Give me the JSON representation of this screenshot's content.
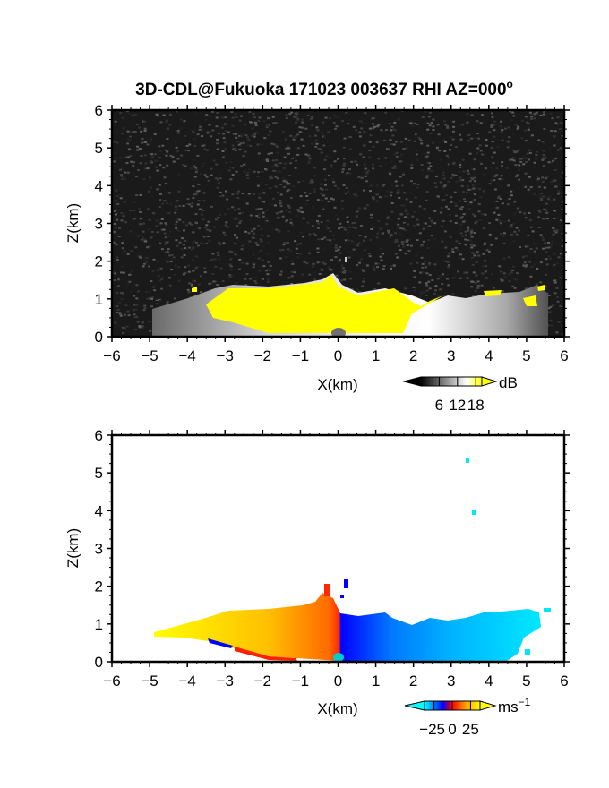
{
  "chart_data": [
    {
      "type": "heatmap",
      "title": "3D-CDL@Fukuoka 171023 003637 RHI AZ=000°",
      "title_text": "3D-CDL@Fukuoka 171023 003637 RHI AZ=000",
      "title_degree": "o",
      "xlabel": "X(km)",
      "ylabel": "Z(km)",
      "xlim": [
        -6,
        6
      ],
      "ylim": [
        0,
        6
      ],
      "x_ticks": [
        -6,
        -5,
        -4,
        -3,
        -2,
        -1,
        0,
        1,
        2,
        3,
        4,
        5,
        6
      ],
      "y_ticks": [
        0,
        1,
        2,
        3,
        4,
        5,
        6
      ],
      "x_tick_labels": [
        "−6",
        "−5",
        "−4",
        "−3",
        "−2",
        "−1",
        "0",
        "1",
        "2",
        "3",
        "4",
        "5",
        "6"
      ],
      "y_tick_labels": [
        "0",
        "1",
        "2",
        "3",
        "4",
        "5",
        "6"
      ],
      "background": "#1a1a1a",
      "colorbar": {
        "unit": "dB",
        "ticks": [
          6,
          12,
          18
        ],
        "tick_labels": [
          "6",
          "12",
          "18"
        ],
        "colors": [
          "#000000",
          "#ffffff",
          "#ffff00"
        ],
        "extend": "both"
      },
      "echo_top_km": [
        {
          "x": -4.8,
          "z": 0.75
        },
        {
          "x": -4.0,
          "z": 1.0
        },
        {
          "x": -3.0,
          "z": 1.3
        },
        {
          "x": -2.0,
          "z": 1.35
        },
        {
          "x": -1.0,
          "z": 1.45
        },
        {
          "x": -0.2,
          "z": 1.65
        },
        {
          "x": 0.3,
          "z": 1.25
        },
        {
          "x": 1.0,
          "z": 1.2
        },
        {
          "x": 1.5,
          "z": 1.25
        },
        {
          "x": 2.0,
          "z": 0.9
        },
        {
          "x": 3.0,
          "z": 1.15
        },
        {
          "x": 4.0,
          "z": 1.1
        },
        {
          "x": 5.0,
          "z": 1.25
        },
        {
          "x": 5.3,
          "z": 0.7
        }
      ],
      "saturated_region_x_km": [
        -3.0,
        2.0
      ]
    },
    {
      "type": "heatmap",
      "xlabel": "X(km)",
      "ylabel": "Z(km)",
      "xlim": [
        -6,
        6
      ],
      "ylim": [
        0,
        6
      ],
      "x_ticks": [
        -6,
        -5,
        -4,
        -3,
        -2,
        -1,
        0,
        1,
        2,
        3,
        4,
        5,
        6
      ],
      "y_ticks": [
        0,
        1,
        2,
        3,
        4,
        5,
        6
      ],
      "x_tick_labels": [
        "−6",
        "−5",
        "−4",
        "−3",
        "−2",
        "−1",
        "0",
        "1",
        "2",
        "3",
        "4",
        "5",
        "6"
      ],
      "y_tick_labels": [
        "0",
        "1",
        "2",
        "3",
        "4",
        "5",
        "6"
      ],
      "background": "#ffffff",
      "colorbar": {
        "unit": "ms",
        "unit_exponent": "−1",
        "ticks": [
          -25,
          0,
          25
        ],
        "tick_labels": [
          "−25",
          "0",
          "25"
        ],
        "colors": [
          "#00ffff",
          "#0000ff",
          "#ff0000",
          "#ffff00"
        ],
        "extend": "both"
      },
      "velocity_ms": [
        {
          "x": -4.5,
          "value": 24
        },
        {
          "x": -3.5,
          "value": 20
        },
        {
          "x": -2.5,
          "value": 15
        },
        {
          "x": -1.5,
          "value": 10
        },
        {
          "x": -0.5,
          "value": 6
        },
        {
          "x": 0.2,
          "value": -3
        },
        {
          "x": 1.0,
          "value": -12
        },
        {
          "x": 2.5,
          "value": -18
        },
        {
          "x": 4.0,
          "value": -20
        }
      ],
      "echo_top_km": [
        {
          "x": -4.9,
          "z": 0.75
        },
        {
          "x": -4.0,
          "z": 1.05
        },
        {
          "x": -3.0,
          "z": 1.35
        },
        {
          "x": -2.0,
          "z": 1.35
        },
        {
          "x": -1.0,
          "z": 1.45
        },
        {
          "x": -0.3,
          "z": 1.65
        },
        {
          "x": 0.3,
          "z": 1.3
        },
        {
          "x": 1.0,
          "z": 1.2
        },
        {
          "x": 1.5,
          "z": 1.25
        },
        {
          "x": 2.0,
          "z": 0.95
        },
        {
          "x": 3.0,
          "z": 1.05
        },
        {
          "x": 4.0,
          "z": 1.05
        },
        {
          "x": 5.0,
          "z": 1.2
        },
        {
          "x": 5.3,
          "z": 0.7
        }
      ]
    }
  ]
}
